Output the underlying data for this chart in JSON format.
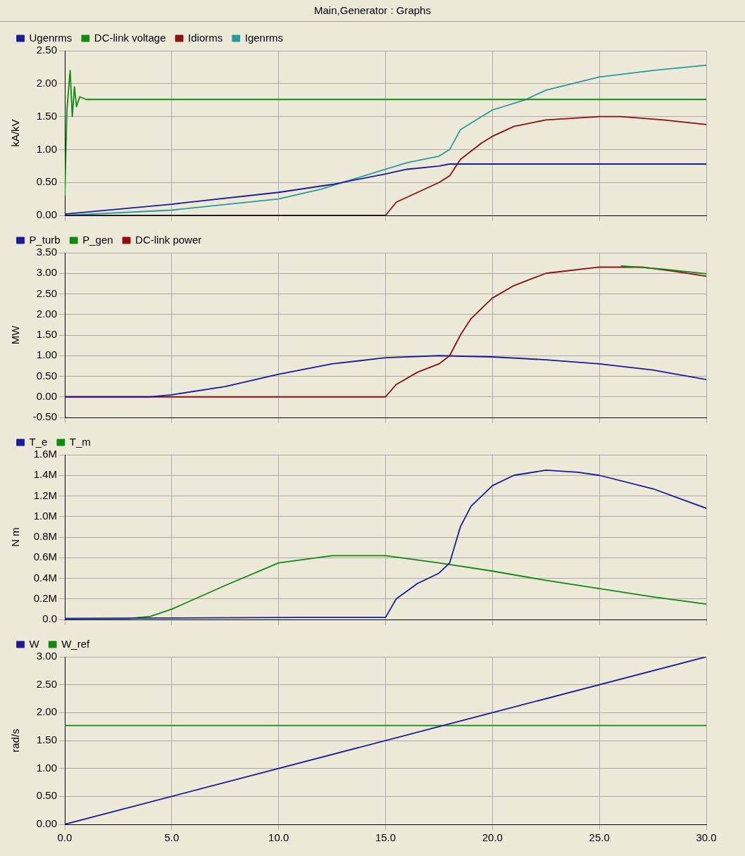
{
  "chart_data": [
    {
      "type": "line",
      "title": "Main,Generator : Graphs",
      "ylabel": "kA/kV",
      "legend": "top",
      "grid": true,
      "tick_labels": "y",
      "marker": "none",
      "line_style": "solid",
      "xlim": [
        0,
        30
      ],
      "xticks": [
        0,
        5,
        10,
        15,
        20,
        25,
        30
      ],
      "ylim": [
        0,
        2.5
      ],
      "yticks": [
        {
          "value": 0,
          "label": "0.00"
        },
        {
          "value": 0.5,
          "label": "0.50"
        },
        {
          "value": 1,
          "label": "1.00"
        },
        {
          "value": 1.5,
          "label": "1.50"
        },
        {
          "value": 2,
          "label": "2.00"
        },
        {
          "value": 2.5,
          "label": "2.50"
        }
      ],
      "series": [
        {
          "name": "Ugenrms",
          "color": "#1a1a9c",
          "x": [
            0,
            5,
            10,
            12.5,
            15,
            16,
            17.5,
            18,
            30
          ],
          "values": [
            0.02,
            0.17,
            0.35,
            0.47,
            0.63,
            0.7,
            0.75,
            0.78,
            0.78
          ]
        },
        {
          "name": "DC-link voltage",
          "color": "#108a10",
          "x": [
            0,
            0.1,
            0.25,
            0.35,
            0.45,
            0.55,
            0.7,
            1,
            30
          ],
          "values": [
            0.3,
            1.6,
            2.2,
            1.5,
            1.95,
            1.65,
            1.8,
            1.76,
            1.76
          ]
        },
        {
          "name": "Idiorms",
          "color": "#8b1010",
          "x": [
            0,
            15,
            15.5,
            16.5,
            17.5,
            18,
            18.5,
            19.5,
            20,
            21,
            22.5,
            25,
            26,
            28,
            30
          ],
          "values": [
            0,
            0,
            0.2,
            0.35,
            0.5,
            0.6,
            0.85,
            1.1,
            1.2,
            1.35,
            1.45,
            1.5,
            1.5,
            1.45,
            1.38
          ]
        },
        {
          "name": "Igenrms",
          "color": "#2a9a9a",
          "x": [
            0,
            5,
            10,
            12,
            13,
            15,
            16,
            17.5,
            18,
            18.5,
            19.5,
            20,
            21.5,
            22.5,
            25,
            27.5,
            30
          ],
          "values": [
            0,
            0.08,
            0.25,
            0.4,
            0.5,
            0.7,
            0.8,
            0.9,
            1.0,
            1.3,
            1.5,
            1.6,
            1.75,
            1.9,
            2.1,
            2.2,
            2.28
          ]
        }
      ]
    },
    {
      "type": "line",
      "ylabel": "MW",
      "legend": "top",
      "grid": true,
      "tick_labels": "y",
      "marker": "none",
      "line_style": "solid",
      "xlim": [
        0,
        30
      ],
      "xticks": [
        0,
        5,
        10,
        15,
        20,
        25,
        30
      ],
      "ylim": [
        -0.5,
        3.5
      ],
      "yticks": [
        {
          "value": -0.5,
          "label": "-0.50"
        },
        {
          "value": 0,
          "label": "0.00"
        },
        {
          "value": 0.5,
          "label": "0.50"
        },
        {
          "value": 1,
          "label": "1.00"
        },
        {
          "value": 1.5,
          "label": "1.50"
        },
        {
          "value": 2,
          "label": "2.00"
        },
        {
          "value": 2.5,
          "label": "2.50"
        },
        {
          "value": 3,
          "label": "3.00"
        },
        {
          "value": 3.5,
          "label": "3.50"
        }
      ],
      "series": [
        {
          "name": "P_turb",
          "color": "#1a1a9c",
          "x": [
            0,
            4,
            5,
            7.5,
            10,
            12.5,
            15,
            17.5,
            20,
            22.5,
            25,
            27.5,
            30
          ],
          "values": [
            0,
            0,
            0.05,
            0.25,
            0.55,
            0.8,
            0.95,
            1.0,
            0.97,
            0.9,
            0.8,
            0.65,
            0.42
          ]
        },
        {
          "name": "P_gen",
          "color": "#108a10",
          "x": [
            26,
            28,
            30
          ],
          "values": [
            3.18,
            3.1,
            2.99
          ]
        },
        {
          "name": "DC-link power",
          "color": "#8b1010",
          "x": [
            0,
            15,
            15.5,
            16.5,
            17.5,
            18,
            18.5,
            19,
            20,
            21,
            22.5,
            25,
            27,
            28.5,
            30
          ],
          "values": [
            0,
            0,
            0.3,
            0.6,
            0.8,
            1.0,
            1.5,
            1.9,
            2.4,
            2.7,
            3.0,
            3.15,
            3.15,
            3.05,
            2.93
          ]
        }
      ]
    },
    {
      "type": "line",
      "ylabel": "N m",
      "legend": "top",
      "grid": true,
      "tick_labels": "y",
      "marker": "none",
      "line_style": "solid",
      "xlim": [
        0,
        30
      ],
      "xticks": [
        0,
        5,
        10,
        15,
        20,
        25,
        30
      ],
      "ylim": [
        0,
        1600000
      ],
      "yticks": [
        {
          "value": 0,
          "label": "0.0"
        },
        {
          "value": 200000,
          "label": "0.2M"
        },
        {
          "value": 400000,
          "label": "0.4M"
        },
        {
          "value": 600000,
          "label": "0.6M"
        },
        {
          "value": 800000,
          "label": "0.8M"
        },
        {
          "value": 1000000,
          "label": "1.0M"
        },
        {
          "value": 1200000,
          "label": "1.2M"
        },
        {
          "value": 1400000,
          "label": "1.4M"
        },
        {
          "value": 1600000,
          "label": "1.6M"
        }
      ],
      "series": [
        {
          "name": "T_e",
          "color": "#1a1a9c",
          "x": [
            0,
            11,
            15,
            15.5,
            16.5,
            17.5,
            18,
            18.5,
            19,
            20,
            21,
            22.5,
            24,
            25,
            27.5,
            30
          ],
          "values": [
            10000,
            20000,
            20000,
            200000,
            350000,
            450000,
            550000,
            900000,
            1100000,
            1300000,
            1400000,
            1450000,
            1430000,
            1400000,
            1270000,
            1080000
          ]
        },
        {
          "name": "T_m",
          "color": "#108a10",
          "x": [
            0,
            3,
            4,
            5,
            7.5,
            10,
            12.5,
            15,
            17.5,
            20,
            22.5,
            25,
            27.5,
            30
          ],
          "values": [
            10000,
            10000,
            30000,
            100000,
            330000,
            550000,
            620000,
            620000,
            550000,
            470000,
            380000,
            300000,
            220000,
            150000
          ]
        }
      ]
    },
    {
      "type": "line",
      "ylabel": "rad/s",
      "legend": "top",
      "grid": true,
      "marker": "none",
      "line_style": "solid",
      "xlim": [
        0,
        30
      ],
      "xticks": [
        {
          "value": 0,
          "label": "0.0"
        },
        {
          "value": 5,
          "label": "5.0"
        },
        {
          "value": 10,
          "label": "10.0"
        },
        {
          "value": 15,
          "label": "15.0"
        },
        {
          "value": 20,
          "label": "20.0"
        },
        {
          "value": 25,
          "label": "25.0"
        },
        {
          "value": 30,
          "label": "30.0"
        }
      ],
      "ylim": [
        0,
        3
      ],
      "yticks": [
        {
          "value": 0,
          "label": "0.00"
        },
        {
          "value": 0.5,
          "label": "0.50"
        },
        {
          "value": 1,
          "label": "1.00"
        },
        {
          "value": 1.5,
          "label": "1.50"
        },
        {
          "value": 2,
          "label": "2.00"
        },
        {
          "value": 2.5,
          "label": "2.50"
        },
        {
          "value": 3,
          "label": "3.00"
        }
      ],
      "series": [
        {
          "name": "W",
          "color": "#1a1a9c",
          "x": [
            0,
            30
          ],
          "values": [
            0,
            3.0
          ]
        },
        {
          "name": "W_ref",
          "color": "#108a10",
          "x": [
            0,
            30
          ],
          "values": [
            1.77,
            1.77
          ]
        }
      ]
    }
  ]
}
